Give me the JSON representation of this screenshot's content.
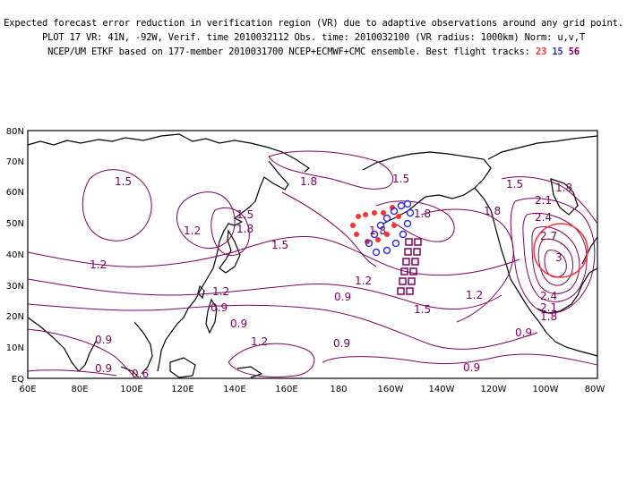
{
  "header": {
    "line1": "Expected forecast error reduction in verification region (VR) due to adaptive observations around any grid point.",
    "line2": "PLOT 17 VR: 41N, -92W, Verif. time 2010032112 Obs. time: 2010032100 (VR radius: 1000km) Norm: u,v,T",
    "line3_text": "NCEP/UM ETKF based on 177-member 2010031700 NCEP+ECMWF+CMC ensemble. Best flight tracks:",
    "tracks": [
      {
        "label": "23",
        "color": "#ff3030"
      },
      {
        "label": "15",
        "color": "#3030e0"
      },
      {
        "label": "56",
        "color": "#800060"
      }
    ]
  },
  "map": {
    "lon_labels": [
      "60E",
      "80E",
      "100E",
      "120E",
      "140E",
      "160E",
      "180",
      "160W",
      "140W",
      "120W",
      "100W",
      "80W"
    ],
    "lat_labels": [
      "80N",
      "70N",
      "60N",
      "50N",
      "40N",
      "30N",
      "20N",
      "10N",
      "EQ"
    ],
    "contour_color": "#800060",
    "contour_labels": [
      "1.5",
      "1.8",
      "1.5",
      "1.5",
      "1.8",
      "1.2",
      "1.8",
      "1.5",
      "1.2",
      "1.2",
      "0.9",
      "1.2",
      "0.9",
      "1.5",
      "0.9",
      "1.2",
      "0.9",
      "1.2",
      "0.9",
      "0.9",
      "0.9",
      "0.9",
      "0.6",
      "1.8",
      "1.5",
      "1.8",
      "2.1",
      "2.4",
      "2.7",
      "3",
      "2.4",
      "2.1",
      "1.8",
      "1.8"
    ],
    "verification_region_color": "#ff3030"
  }
}
